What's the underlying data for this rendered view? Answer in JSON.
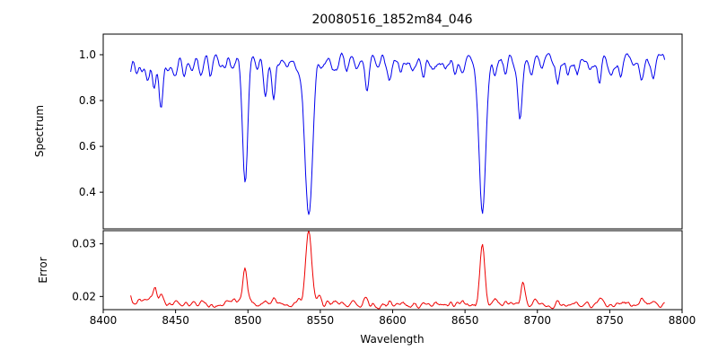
{
  "chart_data": {
    "type": "line",
    "title": "20080516_1852m84_046",
    "xlabel": "Wavelength",
    "xlim": [
      8400,
      8800
    ],
    "x_range": [
      8419,
      8788
    ],
    "xticks": [
      8400,
      8450,
      8500,
      8550,
      8600,
      8650,
      8700,
      8750,
      8800
    ],
    "xtick_labels": [
      "8400",
      "8450",
      "8500",
      "8550",
      "8600",
      "8650",
      "8700",
      "8750",
      "8800"
    ],
    "grid": false,
    "legend": "none",
    "panels": [
      {
        "name": "spectrum",
        "ylabel": "Spectrum",
        "ylim": [
          0.24,
          1.09
        ],
        "yticks": [
          0.4,
          0.6,
          0.8,
          1.0
        ],
        "ytick_labels": [
          "0.4",
          "0.6",
          "0.8",
          "1.0"
        ],
        "color": "#0000ee",
        "baseline": 0.975,
        "noise_amp": 0.05,
        "feature_sign": -1,
        "features_format": [
          "center_wavelength",
          "depth",
          "sigma"
        ],
        "features": [
          [
            8423,
            0.05,
            1.4
          ],
          [
            8427,
            0.04,
            1.2
          ],
          [
            8431,
            0.08,
            1.3
          ],
          [
            8435,
            0.1,
            1.2
          ],
          [
            8440,
            0.22,
            1.4
          ],
          [
            8444,
            0.06,
            1.1
          ],
          [
            8450,
            0.06,
            1.4
          ],
          [
            8456,
            0.05,
            1.2
          ],
          [
            8462,
            0.05,
            1.2
          ],
          [
            8468,
            0.09,
            1.4
          ],
          [
            8474,
            0.06,
            1.2
          ],
          [
            8481,
            0.04,
            1.2
          ],
          [
            8490,
            0.05,
            1.3
          ],
          [
            8498,
            0.53,
            1.8
          ],
          [
            8506,
            0.05,
            1.2
          ],
          [
            8512,
            0.15,
            1.2
          ],
          [
            8518,
            0.14,
            1.2
          ],
          [
            8527,
            0.05,
            1.2
          ],
          [
            8535,
            0.06,
            1.4
          ],
          [
            8542,
            0.69,
            2.6
          ],
          [
            8551,
            0.05,
            1.3
          ],
          [
            8560,
            0.06,
            1.3
          ],
          [
            8568,
            0.05,
            1.2
          ],
          [
            8575,
            0.04,
            1.2
          ],
          [
            8582,
            0.12,
            1.4
          ],
          [
            8590,
            0.05,
            1.2
          ],
          [
            8598,
            0.08,
            1.3
          ],
          [
            8606,
            0.04,
            1.2
          ],
          [
            8614,
            0.05,
            1.2
          ],
          [
            8621,
            0.06,
            1.3
          ],
          [
            8628,
            0.04,
            1.2
          ],
          [
            8636,
            0.05,
            1.2
          ],
          [
            8643,
            0.05,
            1.2
          ],
          [
            8649,
            0.07,
            1.3
          ],
          [
            8662,
            0.67,
            2.3
          ],
          [
            8671,
            0.07,
            1.3
          ],
          [
            8678,
            0.05,
            1.2
          ],
          [
            8688,
            0.24,
            1.6
          ],
          [
            8696,
            0.05,
            1.2
          ],
          [
            8703,
            0.05,
            1.2
          ],
          [
            8714,
            0.1,
            1.4
          ],
          [
            8721,
            0.05,
            1.2
          ],
          [
            8728,
            0.06,
            1.3
          ],
          [
            8736,
            0.05,
            1.2
          ],
          [
            8743,
            0.08,
            1.3
          ],
          [
            8751,
            0.05,
            1.2
          ],
          [
            8758,
            0.06,
            1.3
          ],
          [
            8766,
            0.05,
            1.2
          ],
          [
            8772,
            0.08,
            1.4
          ],
          [
            8780,
            0.05,
            1.2
          ]
        ]
      },
      {
        "name": "error",
        "ylabel": "Error",
        "ylim": [
          0.0175,
          0.0325
        ],
        "yticks": [
          0.02,
          0.03
        ],
        "ytick_labels": [
          "0.02",
          "0.03"
        ],
        "color": "#ee0000",
        "baseline": 0.0185,
        "noise_amp": 0.0012,
        "feature_sign": 1,
        "features_format": [
          "center_wavelength",
          "height",
          "sigma"
        ],
        "features": [
          [
            8420,
            0.0008,
            6.0
          ],
          [
            8425,
            0.0008,
            1.4
          ],
          [
            8433,
            0.0012,
            1.2
          ],
          [
            8436,
            0.0028,
            1.2
          ],
          [
            8440,
            0.0018,
            1.3
          ],
          [
            8450,
            0.0008,
            1.3
          ],
          [
            8468,
            0.001,
            1.3
          ],
          [
            8490,
            0.0008,
            1.2
          ],
          [
            8498,
            0.007,
            1.5
          ],
          [
            8512,
            0.0012,
            1.2
          ],
          [
            8518,
            0.001,
            1.2
          ],
          [
            8535,
            0.001,
            1.4
          ],
          [
            8542,
            0.0137,
            2.0
          ],
          [
            8549,
            0.0014,
            1.4
          ],
          [
            8560,
            0.0008,
            1.2
          ],
          [
            8582,
            0.0012,
            1.3
          ],
          [
            8598,
            0.0008,
            1.2
          ],
          [
            8621,
            0.0007,
            1.2
          ],
          [
            8649,
            0.0008,
            1.2
          ],
          [
            8662,
            0.0118,
            1.7
          ],
          [
            8671,
            0.0012,
            1.3
          ],
          [
            8678,
            0.001,
            1.2
          ],
          [
            8690,
            0.0038,
            1.3
          ],
          [
            8703,
            0.0008,
            1.2
          ],
          [
            8714,
            0.001,
            1.3
          ],
          [
            8743,
            0.0009,
            1.2
          ],
          [
            8772,
            0.001,
            1.3
          ]
        ]
      }
    ]
  }
}
